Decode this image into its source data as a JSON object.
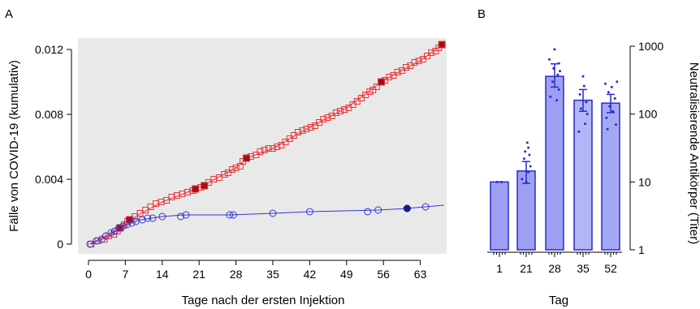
{
  "chart_data": [
    {
      "panel": "A",
      "type": "scatter",
      "xlabel": "Tage nach der ersten Injektion",
      "ylabel": "Fälle von COVID-19 (kumulativ)",
      "xlim": [
        -2,
        68
      ],
      "ylim": [
        -0.0006,
        0.0127
      ],
      "xticks": [
        0,
        7,
        14,
        21,
        28,
        35,
        42,
        49,
        56,
        63
      ],
      "yticks": [
        0,
        0.004,
        0.008,
        0.012
      ],
      "ytick_labels": [
        "0",
        "0.004",
        "0.008",
        "0.012"
      ],
      "grid": false,
      "series": [
        {
          "marker": "square",
          "color": "#e8343a",
          "fill_color": "#9e1014",
          "points": [
            [
              0.5,
              0.0
            ],
            [
              1.8,
              0.0002
            ],
            [
              3.0,
              0.0003
            ],
            [
              3.8,
              0.0005
            ],
            [
              4.8,
              0.0006
            ],
            [
              5.5,
              0.0008
            ],
            [
              6.0,
              0.001
            ],
            [
              6.8,
              0.0012
            ],
            [
              7.4,
              0.0014
            ],
            [
              7.8,
              0.0015
            ],
            [
              8.8,
              0.0017
            ],
            [
              9.8,
              0.0019
            ],
            [
              10.8,
              0.0021
            ],
            [
              11.8,
              0.0023
            ],
            [
              12.8,
              0.0025
            ],
            [
              13.8,
              0.0026
            ],
            [
              14.8,
              0.0027
            ],
            [
              15.8,
              0.0029
            ],
            [
              16.8,
              0.003
            ],
            [
              17.8,
              0.0031
            ],
            [
              18.8,
              0.0032
            ],
            [
              19.8,
              0.0033
            ],
            [
              20.3,
              0.0034
            ],
            [
              21.3,
              0.0035
            ],
            [
              22.0,
              0.0036
            ],
            [
              22.8,
              0.0038
            ],
            [
              23.8,
              0.004
            ],
            [
              24.8,
              0.0041
            ],
            [
              25.8,
              0.0043
            ],
            [
              26.5,
              0.0044
            ],
            [
              27.3,
              0.0046
            ],
            [
              28.0,
              0.0047
            ],
            [
              28.8,
              0.0048
            ],
            [
              29.3,
              0.0051
            ],
            [
              30.0,
              0.0053
            ],
            [
              30.8,
              0.0054
            ],
            [
              31.8,
              0.0055
            ],
            [
              32.6,
              0.0057
            ],
            [
              33.4,
              0.0058
            ],
            [
              34.2,
              0.0059
            ],
            [
              35.0,
              0.0059
            ],
            [
              35.8,
              0.006
            ],
            [
              36.6,
              0.0061
            ],
            [
              37.4,
              0.0063
            ],
            [
              38.2,
              0.0065
            ],
            [
              39.0,
              0.0067
            ],
            [
              39.8,
              0.0069
            ],
            [
              40.6,
              0.007
            ],
            [
              41.4,
              0.0071
            ],
            [
              42.2,
              0.0072
            ],
            [
              43.0,
              0.0073
            ],
            [
              43.8,
              0.0075
            ],
            [
              44.6,
              0.0077
            ],
            [
              45.4,
              0.0078
            ],
            [
              46.2,
              0.0079
            ],
            [
              47.0,
              0.0081
            ],
            [
              47.8,
              0.0082
            ],
            [
              48.6,
              0.0083
            ],
            [
              49.4,
              0.0084
            ],
            [
              50.2,
              0.0086
            ],
            [
              51.0,
              0.0088
            ],
            [
              51.8,
              0.009
            ],
            [
              52.6,
              0.0092
            ],
            [
              53.4,
              0.0094
            ],
            [
              54.0,
              0.0095
            ],
            [
              54.7,
              0.0097
            ],
            [
              55.6,
              0.01
            ],
            [
              56.3,
              0.0101
            ],
            [
              57.1,
              0.0103
            ],
            [
              57.9,
              0.0104
            ],
            [
              58.7,
              0.0106
            ],
            [
              59.5,
              0.0107
            ],
            [
              60.3,
              0.0109
            ],
            [
              61.1,
              0.011
            ],
            [
              61.9,
              0.0112
            ],
            [
              62.7,
              0.0113
            ],
            [
              63.5,
              0.0114
            ],
            [
              64.3,
              0.0116
            ],
            [
              65.1,
              0.0118
            ],
            [
              65.9,
              0.0119
            ],
            [
              66.5,
              0.0121
            ],
            [
              67.1,
              0.0123
            ]
          ],
          "filled_points": [
            [
              6.0,
              0.001
            ],
            [
              7.8,
              0.0015
            ],
            [
              20.3,
              0.0034
            ],
            [
              22.0,
              0.0036
            ],
            [
              30.0,
              0.0053
            ],
            [
              55.6,
              0.01
            ],
            [
              67.1,
              0.0123
            ]
          ],
          "line": [
            [
              0.5,
              0.0
            ],
            [
              2,
              0.0002
            ],
            [
              4,
              0.0005
            ],
            [
              6,
              0.001
            ],
            [
              8,
              0.0015
            ],
            [
              10,
              0.0019
            ],
            [
              14,
              0.0026
            ],
            [
              18,
              0.0031
            ],
            [
              21,
              0.0035
            ],
            [
              24,
              0.004
            ],
            [
              28,
              0.0047
            ],
            [
              30,
              0.0053
            ],
            [
              35,
              0.0059
            ],
            [
              42,
              0.0072
            ],
            [
              49,
              0.0084
            ],
            [
              56,
              0.0101
            ],
            [
              63,
              0.0113
            ],
            [
              67.1,
              0.0123
            ]
          ]
        },
        {
          "marker": "circle",
          "color": "#3535d6",
          "fill_color": "#1a1a8c",
          "points": [
            [
              0.3,
              0.0
            ],
            [
              1.5,
              0.0002
            ],
            [
              2.5,
              0.0003
            ],
            [
              3.3,
              0.0005
            ],
            [
              4.3,
              0.0007
            ],
            [
              5.0,
              0.0008
            ],
            [
              5.8,
              0.001
            ],
            [
              6.5,
              0.0011
            ],
            [
              7.3,
              0.0012
            ],
            [
              8.2,
              0.0013
            ],
            [
              9.0,
              0.0014
            ],
            [
              10.2,
              0.0015
            ],
            [
              11.2,
              0.0016
            ],
            [
              12.2,
              0.0016
            ],
            [
              14.0,
              0.0017
            ],
            [
              17.5,
              0.0017
            ],
            [
              18.5,
              0.0018
            ],
            [
              26.8,
              0.0018
            ],
            [
              27.5,
              0.0018
            ],
            [
              35.0,
              0.0019
            ],
            [
              42.0,
              0.002
            ],
            [
              53.0,
              0.002
            ],
            [
              55.0,
              0.0021
            ],
            [
              60.5,
              0.0022
            ],
            [
              64.0,
              0.0023
            ]
          ],
          "filled_points": [
            [
              60.5,
              0.0022
            ]
          ],
          "line": [
            [
              0.3,
              0.0
            ],
            [
              2,
              0.0003
            ],
            [
              4,
              0.0006
            ],
            [
              6,
              0.001
            ],
            [
              8,
              0.0013
            ],
            [
              10,
              0.0015
            ],
            [
              12,
              0.0016
            ],
            [
              14,
              0.0017
            ],
            [
              18,
              0.0018
            ],
            [
              27,
              0.0018
            ],
            [
              35,
              0.0019
            ],
            [
              42,
              0.002
            ],
            [
              55,
              0.0021
            ],
            [
              60.5,
              0.0022
            ],
            [
              67.5,
              0.0024
            ]
          ]
        }
      ]
    },
    {
      "panel": "B",
      "type": "bar",
      "xlabel": "Tag",
      "ylabel": "Neutralisierende Antikörper (Titer)",
      "yscale": "log",
      "ylim": [
        1,
        1000
      ],
      "yticks": [
        1,
        10,
        100,
        1000
      ],
      "ytick_labels": [
        "1",
        "10",
        "100",
        "1000"
      ],
      "categories": [
        "1",
        "21",
        "28",
        "35",
        "52"
      ],
      "values": [
        10,
        14.5,
        360,
        160,
        145
      ],
      "error_low": [
        10,
        9.5,
        250,
        110,
        105
      ],
      "error_high": [
        10,
        20,
        550,
        230,
        195
      ],
      "bar_fill": [
        "#9da0f2",
        "#9da0f2",
        "#9da0f2",
        "#b3b6f6",
        "#a5a8f4"
      ],
      "bar_stroke": "#2a2ac8",
      "points": [
        [
          [
            10,
            -0.1
          ],
          [
            10,
            0.1
          ]
        ],
        [
          [
            10,
            0
          ],
          [
            11,
            -0.2
          ],
          [
            14,
            0.1
          ],
          [
            17,
            0.2
          ],
          [
            22,
            -0.1
          ],
          [
            25,
            0.15
          ],
          [
            28,
            -0.05
          ],
          [
            32,
            0.1
          ],
          [
            38,
            0.05
          ]
        ],
        [
          [
            160,
            0.1
          ],
          [
            180,
            -0.2
          ],
          [
            230,
            0.2
          ],
          [
            300,
            -0.1
          ],
          [
            380,
            0.15
          ],
          [
            430,
            0.25
          ],
          [
            470,
            -0.05
          ],
          [
            560,
            0.2
          ],
          [
            640,
            -0.25
          ],
          [
            900,
            0
          ]
        ],
        [
          [
            55,
            -0.2
          ],
          [
            72,
            0.1
          ],
          [
            100,
            0.2
          ],
          [
            120,
            -0.1
          ],
          [
            150,
            0.15
          ],
          [
            195,
            -0.15
          ],
          [
            260,
            0.05
          ],
          [
            360,
            0
          ]
        ],
        [
          [
            60,
            -0.15
          ],
          [
            70,
            0.25
          ],
          [
            88,
            -0.2
          ],
          [
            110,
            0.1
          ],
          [
            130,
            -0.05
          ],
          [
            170,
            0.2
          ],
          [
            210,
            -0.1
          ],
          [
            250,
            0.05
          ],
          [
            280,
            -0.25
          ],
          [
            300,
            0.3
          ]
        ]
      ],
      "point_color": "#2a2ad8",
      "grid": false
    }
  ],
  "labels": {
    "panel_a": "A",
    "panel_b": "B"
  }
}
